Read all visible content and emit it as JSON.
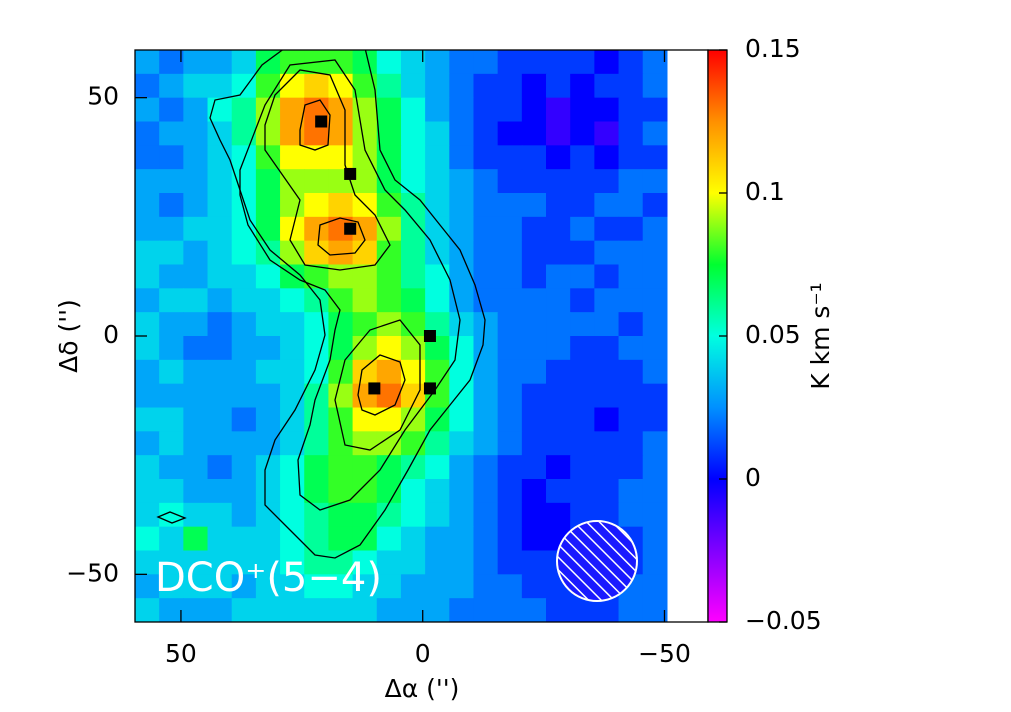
{
  "chart_data": {
    "type": "heatmap",
    "annotation": "DCO⁺(5−4)",
    "xlabel": "Δα ('')",
    "ylabel": "Δδ ('')",
    "colorbar_label": "K km s⁻¹",
    "xlim": [
      59.5,
      -59
    ],
    "ylim": [
      -60,
      60
    ],
    "xticks": [
      50,
      0,
      {
        "value": -50,
        "label": "−50"
      }
    ],
    "yticks": [
      50,
      0,
      {
        "value": -50,
        "label": "−50"
      }
    ],
    "zlim": [
      -0.05,
      0.15
    ],
    "zticks": [
      {
        "value": -0.05,
        "label": "−0.05"
      },
      0,
      0.05,
      0.1,
      0.15
    ],
    "colorscale": [
      "#ff00ff",
      "#8000ff",
      "#0000ff",
      "#0090ff",
      "#00ffe0",
      "#00ff30",
      "#ffff00",
      "#ff9000",
      "#ff0000"
    ],
    "x": [
      57,
      52,
      47,
      42,
      37,
      32,
      27,
      22,
      17,
      12,
      7,
      2,
      -3,
      -8,
      -13,
      -18,
      -23,
      -28,
      -33,
      -38,
      -43,
      -48
    ],
    "y": [
      57.5,
      52.5,
      47.5,
      42.5,
      37.5,
      32.5,
      27.5,
      22.5,
      17.5,
      12.5,
      7.5,
      2.5,
      -2.5,
      -7.5,
      -12.5,
      -17.5,
      -22.5,
      -27.5,
      -32.5,
      -37.5,
      -42.5,
      -47.5,
      -52.5,
      -57.5
    ],
    "z": [
      [
        0.03,
        0.02,
        0.03,
        0.03,
        0.04,
        0.07,
        0.08,
        0.08,
        0.08,
        0.07,
        0.05,
        0.04,
        0.03,
        0.02,
        0.02,
        0.01,
        0.01,
        0.01,
        0.01,
        0.0,
        0.01,
        0.02
      ],
      [
        0.02,
        0.03,
        0.04,
        0.04,
        0.05,
        0.08,
        0.1,
        0.11,
        0.1,
        0.08,
        0.06,
        0.04,
        0.03,
        0.02,
        0.01,
        0.01,
        0.0,
        0.01,
        0.0,
        0.01,
        0.01,
        0.02
      ],
      [
        0.03,
        0.02,
        0.03,
        0.05,
        0.06,
        0.09,
        0.12,
        0.13,
        0.12,
        0.09,
        0.07,
        0.05,
        0.03,
        0.02,
        0.01,
        0.01,
        0.0,
        -0.01,
        0.0,
        0.0,
        0.01,
        0.01
      ],
      [
        0.02,
        0.03,
        0.03,
        0.04,
        0.06,
        0.09,
        0.12,
        0.13,
        0.12,
        0.09,
        0.07,
        0.05,
        0.04,
        0.02,
        0.01,
        0.0,
        0.0,
        -0.01,
        0.0,
        -0.01,
        0.01,
        0.02
      ],
      [
        0.02,
        0.02,
        0.03,
        0.04,
        0.05,
        0.08,
        0.1,
        0.1,
        0.1,
        0.09,
        0.07,
        0.05,
        0.04,
        0.02,
        0.01,
        0.01,
        0.01,
        0.0,
        0.01,
        0.0,
        0.01,
        0.01
      ],
      [
        0.03,
        0.03,
        0.03,
        0.04,
        0.05,
        0.07,
        0.09,
        0.09,
        0.09,
        0.09,
        0.07,
        0.05,
        0.04,
        0.03,
        0.02,
        0.01,
        0.01,
        0.01,
        0.01,
        0.01,
        0.02,
        0.02
      ],
      [
        0.03,
        0.02,
        0.03,
        0.04,
        0.05,
        0.07,
        0.09,
        0.1,
        0.11,
        0.1,
        0.08,
        0.06,
        0.04,
        0.03,
        0.02,
        0.02,
        0.02,
        0.01,
        0.01,
        0.02,
        0.02,
        0.01
      ],
      [
        0.03,
        0.03,
        0.04,
        0.04,
        0.05,
        0.07,
        0.1,
        0.12,
        0.13,
        0.12,
        0.09,
        0.06,
        0.04,
        0.03,
        0.02,
        0.02,
        0.01,
        0.01,
        0.02,
        0.01,
        0.01,
        0.02
      ],
      [
        0.04,
        0.04,
        0.03,
        0.04,
        0.05,
        0.06,
        0.09,
        0.11,
        0.12,
        0.11,
        0.08,
        0.06,
        0.04,
        0.03,
        0.02,
        0.02,
        0.01,
        0.01,
        0.01,
        0.02,
        0.02,
        0.02
      ],
      [
        0.04,
        0.03,
        0.03,
        0.04,
        0.04,
        0.05,
        0.07,
        0.08,
        0.09,
        0.09,
        0.08,
        0.06,
        0.05,
        0.03,
        0.02,
        0.02,
        0.01,
        0.02,
        0.02,
        0.01,
        0.02,
        0.02
      ],
      [
        0.03,
        0.04,
        0.04,
        0.03,
        0.04,
        0.04,
        0.05,
        0.06,
        0.08,
        0.09,
        0.08,
        0.07,
        0.05,
        0.03,
        0.02,
        0.02,
        0.02,
        0.02,
        0.01,
        0.02,
        0.02,
        0.02
      ],
      [
        0.04,
        0.03,
        0.03,
        0.02,
        0.03,
        0.04,
        0.04,
        0.05,
        0.07,
        0.08,
        0.09,
        0.08,
        0.06,
        0.04,
        0.03,
        0.02,
        0.02,
        0.02,
        0.02,
        0.02,
        0.01,
        0.02
      ],
      [
        0.04,
        0.03,
        0.02,
        0.02,
        0.03,
        0.03,
        0.04,
        0.05,
        0.07,
        0.09,
        0.1,
        0.09,
        0.07,
        0.05,
        0.03,
        0.02,
        0.02,
        0.02,
        0.01,
        0.01,
        0.02,
        0.02
      ],
      [
        0.03,
        0.04,
        0.03,
        0.03,
        0.03,
        0.04,
        0.04,
        0.05,
        0.08,
        0.11,
        0.12,
        0.1,
        0.08,
        0.05,
        0.03,
        0.02,
        0.02,
        0.01,
        0.01,
        0.01,
        0.01,
        0.02
      ],
      [
        0.03,
        0.03,
        0.03,
        0.03,
        0.03,
        0.03,
        0.04,
        0.06,
        0.09,
        0.12,
        0.13,
        0.11,
        0.08,
        0.05,
        0.03,
        0.02,
        0.01,
        0.01,
        0.01,
        0.01,
        0.01,
        0.01
      ],
      [
        0.04,
        0.04,
        0.03,
        0.03,
        0.02,
        0.03,
        0.04,
        0.06,
        0.08,
        0.1,
        0.1,
        0.09,
        0.07,
        0.05,
        0.03,
        0.02,
        0.01,
        0.01,
        0.01,
        0.0,
        0.01,
        0.01
      ],
      [
        0.03,
        0.04,
        0.03,
        0.03,
        0.03,
        0.03,
        0.04,
        0.06,
        0.08,
        0.09,
        0.09,
        0.08,
        0.06,
        0.04,
        0.03,
        0.02,
        0.01,
        0.01,
        0.01,
        0.01,
        0.01,
        0.02
      ],
      [
        0.04,
        0.03,
        0.03,
        0.02,
        0.03,
        0.04,
        0.05,
        0.07,
        0.08,
        0.08,
        0.07,
        0.06,
        0.05,
        0.03,
        0.02,
        0.01,
        0.01,
        0.0,
        0.01,
        0.01,
        0.01,
        0.02
      ],
      [
        0.04,
        0.04,
        0.03,
        0.03,
        0.03,
        0.04,
        0.05,
        0.07,
        0.08,
        0.08,
        0.07,
        0.05,
        0.04,
        0.03,
        0.02,
        0.01,
        0.0,
        0.01,
        0.01,
        0.01,
        0.02,
        0.02
      ],
      [
        0.04,
        0.05,
        0.04,
        0.04,
        0.03,
        0.04,
        0.05,
        0.06,
        0.07,
        0.07,
        0.06,
        0.05,
        0.04,
        0.03,
        0.02,
        0.01,
        0.0,
        0.0,
        0.01,
        0.01,
        0.02,
        0.02
      ],
      [
        0.05,
        0.04,
        0.07,
        0.04,
        0.04,
        0.04,
        0.05,
        0.06,
        0.07,
        0.07,
        0.05,
        0.04,
        0.03,
        0.03,
        0.02,
        0.01,
        0.0,
        0.0,
        0.01,
        0.01,
        0.01,
        0.02
      ],
      [
        0.04,
        0.04,
        0.04,
        0.04,
        0.04,
        0.04,
        0.05,
        0.06,
        0.06,
        0.05,
        0.04,
        0.04,
        0.03,
        0.03,
        0.02,
        0.01,
        0.01,
        0.01,
        0.0,
        0.01,
        0.01,
        0.02
      ],
      [
        0.03,
        0.04,
        0.04,
        0.04,
        0.03,
        0.04,
        0.04,
        0.05,
        0.05,
        0.04,
        0.04,
        0.03,
        0.03,
        0.03,
        0.02,
        0.02,
        0.01,
        0.01,
        0.01,
        0.01,
        0.02,
        0.02
      ],
      [
        0.04,
        0.03,
        0.03,
        0.03,
        0.04,
        0.04,
        0.04,
        0.04,
        0.04,
        0.04,
        0.03,
        0.03,
        0.03,
        0.02,
        0.02,
        0.02,
        0.02,
        0.01,
        0.01,
        0.01,
        0.02,
        0.02
      ]
    ],
    "sources": {
      "x": [
        21,
        15,
        15,
        -1.5,
        -1.5,
        10
      ],
      "y": [
        45,
        34,
        22.5,
        0,
        -11,
        -11
      ]
    }
  }
}
